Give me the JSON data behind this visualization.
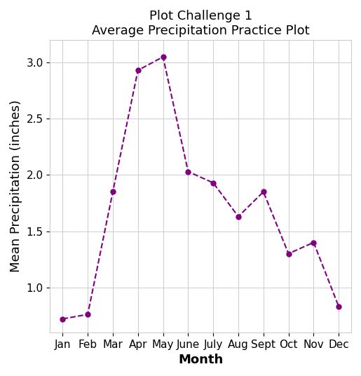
{
  "title_line1": "Plot Challenge 1",
  "title_line2": "Average Precipitation Practice Plot",
  "xlabel": "Month",
  "ylabel": "Mean Precipitation (inches)",
  "months": [
    "Jan",
    "Feb",
    "Mar",
    "Apr",
    "May",
    "June",
    "July",
    "Aug",
    "Sept",
    "Oct",
    "Nov",
    "Dec"
  ],
  "values": [
    0.72,
    0.76,
    1.85,
    2.93,
    3.05,
    2.03,
    1.93,
    1.63,
    1.85,
    1.3,
    1.4,
    0.83
  ],
  "line_color": "#800080",
  "marker": "o",
  "linestyle": "--",
  "linewidth": 1.5,
  "markersize": 5,
  "ylim": [
    0.6,
    3.2
  ],
  "yticks": [
    1.0,
    1.5,
    2.0,
    2.5,
    3.0
  ],
  "grid": true,
  "background_color": "#ffffff",
  "grid_color": "#cccccc",
  "title_fontsize": 13,
  "label_fontsize": 13,
  "tick_fontsize": 11
}
